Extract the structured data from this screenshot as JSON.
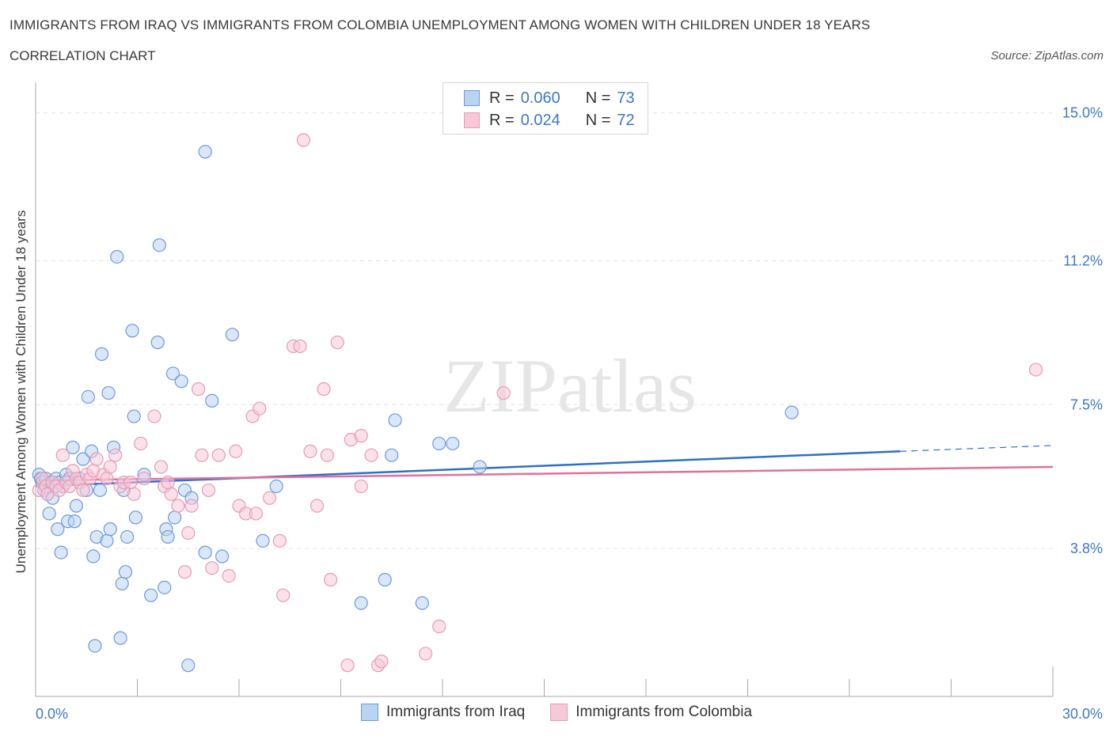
{
  "header": {
    "title": "IMMIGRANTS FROM IRAQ VS IMMIGRANTS FROM COLOMBIA UNEMPLOYMENT AMONG WOMEN WITH CHILDREN UNDER 18 YEARS",
    "subtitle": "CORRELATION CHART",
    "source": "Source: ZipAtlas.com"
  },
  "watermark": "ZIPatlas",
  "legend": {
    "iraq": {
      "r_label": "R =",
      "r_value": "0.060",
      "n_label": "N =",
      "n_value": "73",
      "name": "Immigrants from Iraq"
    },
    "colombia": {
      "r_label": "R =",
      "r_value": "0.024",
      "n_label": "N =",
      "n_value": "72",
      "name": "Immigrants from Colombia"
    }
  },
  "colors": {
    "iraq_fill": "#b9d3f3",
    "iraq_stroke": "#6c9bd9",
    "iraq_line": "#2e6fc7",
    "colombia_fill": "#f7c9d8",
    "colombia_stroke": "#e89ab5",
    "colombia_line": "#e0709a",
    "axis_text": "#3b78c2",
    "grid": "#e3e3e3"
  },
  "chart_data": {
    "type": "scatter",
    "title": "IMMIGRANTS FROM IRAQ VS IMMIGRANTS FROM COLOMBIA UNEMPLOYMENT AMONG WOMEN WITH CHILDREN UNDER 18 YEARS",
    "xlabel": "",
    "ylabel": "Unemployment Among Women with Children Under 18 years",
    "xlim": [
      0,
      30
    ],
    "ylim": [
      0,
      15.5
    ],
    "x_tick_labels": [
      "0.0%",
      "30.0%"
    ],
    "y_ticks": [
      3.8,
      7.5,
      11.2,
      15.0
    ],
    "y_tick_labels": [
      "3.8%",
      "7.5%",
      "11.2%",
      "15.0%"
    ],
    "series": [
      {
        "name": "Immigrants from Iraq",
        "trend": {
          "x": [
            0,
            25.5
          ],
          "y": [
            5.4,
            6.3
          ],
          "dashed_to": [
            30,
            6.45
          ]
        },
        "points": [
          [
            0.1,
            5.7
          ],
          [
            0.15,
            5.6
          ],
          [
            0.2,
            5.5
          ],
          [
            0.25,
            5.3
          ],
          [
            0.3,
            5.6
          ],
          [
            0.35,
            5.2
          ],
          [
            0.4,
            4.7
          ],
          [
            0.45,
            5.5
          ],
          [
            0.5,
            5.1
          ],
          [
            0.55,
            5.4
          ],
          [
            0.6,
            5.6
          ],
          [
            0.65,
            4.3
          ],
          [
            0.7,
            5.5
          ],
          [
            0.75,
            3.7
          ],
          [
            0.8,
            5.4
          ],
          [
            0.9,
            5.7
          ],
          [
            0.95,
            4.5
          ],
          [
            1.0,
            5.6
          ],
          [
            1.1,
            6.4
          ],
          [
            1.15,
            4.5
          ],
          [
            1.2,
            4.9
          ],
          [
            1.3,
            5.6
          ],
          [
            1.4,
            6.1
          ],
          [
            1.5,
            5.3
          ],
          [
            1.55,
            7.7
          ],
          [
            1.65,
            6.3
          ],
          [
            1.7,
            3.6
          ],
          [
            1.75,
            1.3
          ],
          [
            1.8,
            4.1
          ],
          [
            1.9,
            5.3
          ],
          [
            1.95,
            8.8
          ],
          [
            2.1,
            4.0
          ],
          [
            2.15,
            7.8
          ],
          [
            2.2,
            4.3
          ],
          [
            2.3,
            6.4
          ],
          [
            2.4,
            11.3
          ],
          [
            2.5,
            1.5
          ],
          [
            2.55,
            2.9
          ],
          [
            2.6,
            5.3
          ],
          [
            2.65,
            3.2
          ],
          [
            2.7,
            4.1
          ],
          [
            2.85,
            9.4
          ],
          [
            2.9,
            7.2
          ],
          [
            2.95,
            4.6
          ],
          [
            3.2,
            5.7
          ],
          [
            3.4,
            2.6
          ],
          [
            3.6,
            9.1
          ],
          [
            3.65,
            11.6
          ],
          [
            3.8,
            2.8
          ],
          [
            3.85,
            4.3
          ],
          [
            3.9,
            4.1
          ],
          [
            4.05,
            8.3
          ],
          [
            4.1,
            4.6
          ],
          [
            4.3,
            8.1
          ],
          [
            4.4,
            5.3
          ],
          [
            4.5,
            0.8
          ],
          [
            4.6,
            5.1
          ],
          [
            5.0,
            14.0
          ],
          [
            5.0,
            3.7
          ],
          [
            5.2,
            7.6
          ],
          [
            5.5,
            3.6
          ],
          [
            5.8,
            9.3
          ],
          [
            6.7,
            4.0
          ],
          [
            7.1,
            5.4
          ],
          [
            9.6,
            2.4
          ],
          [
            10.3,
            3.0
          ],
          [
            10.5,
            6.2
          ],
          [
            10.6,
            7.1
          ],
          [
            11.4,
            2.4
          ],
          [
            11.9,
            6.5
          ],
          [
            12.3,
            6.5
          ],
          [
            13.1,
            5.9
          ],
          [
            22.3,
            7.3
          ]
        ]
      },
      {
        "name": "Immigrants from Colombia",
        "trend": {
          "x": [
            0,
            30
          ],
          "y": [
            5.55,
            5.9
          ]
        },
        "points": [
          [
            0.1,
            5.3
          ],
          [
            0.2,
            5.6
          ],
          [
            0.3,
            5.4
          ],
          [
            0.35,
            5.2
          ],
          [
            0.5,
            5.5
          ],
          [
            0.6,
            5.4
          ],
          [
            0.7,
            5.3
          ],
          [
            0.8,
            6.2
          ],
          [
            0.9,
            5.5
          ],
          [
            1.0,
            5.4
          ],
          [
            1.1,
            5.8
          ],
          [
            1.2,
            5.6
          ],
          [
            1.3,
            5.5
          ],
          [
            1.4,
            5.3
          ],
          [
            1.5,
            5.7
          ],
          [
            1.6,
            5.6
          ],
          [
            1.7,
            5.8
          ],
          [
            1.8,
            6.1
          ],
          [
            2.0,
            5.7
          ],
          [
            2.1,
            5.6
          ],
          [
            2.2,
            5.9
          ],
          [
            2.35,
            6.2
          ],
          [
            2.5,
            5.4
          ],
          [
            2.6,
            5.5
          ],
          [
            2.8,
            5.5
          ],
          [
            2.9,
            5.2
          ],
          [
            3.1,
            6.5
          ],
          [
            3.2,
            5.6
          ],
          [
            3.5,
            7.2
          ],
          [
            3.7,
            5.9
          ],
          [
            3.8,
            5.4
          ],
          [
            3.9,
            5.5
          ],
          [
            4.0,
            5.2
          ],
          [
            4.2,
            4.9
          ],
          [
            4.4,
            3.2
          ],
          [
            4.5,
            4.2
          ],
          [
            4.6,
            4.9
          ],
          [
            4.8,
            7.9
          ],
          [
            4.9,
            6.2
          ],
          [
            5.1,
            5.3
          ],
          [
            5.2,
            3.3
          ],
          [
            5.4,
            6.2
          ],
          [
            5.7,
            3.1
          ],
          [
            5.9,
            6.3
          ],
          [
            6.0,
            4.9
          ],
          [
            6.2,
            4.7
          ],
          [
            6.4,
            7.2
          ],
          [
            6.5,
            4.7
          ],
          [
            6.6,
            7.4
          ],
          [
            6.9,
            5.1
          ],
          [
            7.2,
            4.0
          ],
          [
            7.3,
            2.6
          ],
          [
            7.6,
            9.0
          ],
          [
            7.8,
            9.0
          ],
          [
            7.9,
            14.3
          ],
          [
            8.1,
            6.3
          ],
          [
            8.3,
            4.9
          ],
          [
            8.5,
            7.9
          ],
          [
            8.6,
            6.2
          ],
          [
            8.7,
            3.0
          ],
          [
            8.9,
            9.1
          ],
          [
            9.3,
            6.6
          ],
          [
            9.6,
            6.7
          ],
          [
            9.2,
            0.8
          ],
          [
            9.6,
            5.4
          ],
          [
            9.9,
            6.2
          ],
          [
            10.1,
            0.8
          ],
          [
            10.2,
            0.9
          ],
          [
            11.5,
            1.1
          ],
          [
            11.9,
            1.8
          ],
          [
            13.8,
            7.8
          ],
          [
            29.5,
            8.4
          ]
        ]
      }
    ]
  }
}
